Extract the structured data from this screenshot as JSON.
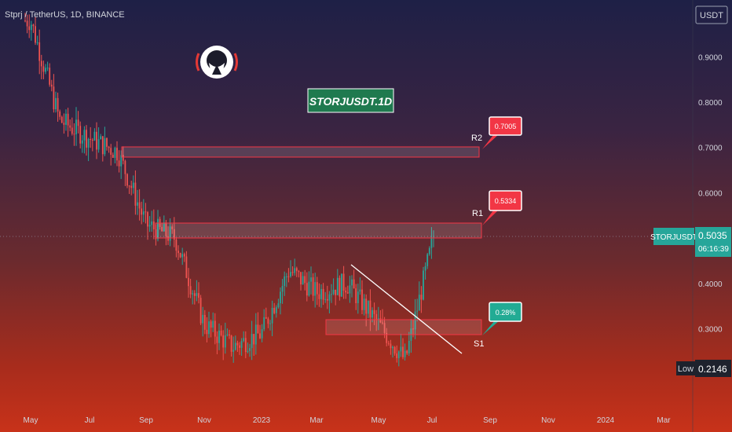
{
  "header": {
    "symbol_title": "Stprj / TetherUS, 1D, BINANCE"
  },
  "watermark": {
    "label": "STORJUSDT.1D"
  },
  "price_scale": {
    "currency": "USDT"
  },
  "current_price": {
    "ticker": "STORJUSDT",
    "value": "0.5035",
    "countdown": "06:16:39"
  },
  "low_marker": {
    "label": "Low",
    "value": "0.2146"
  },
  "annotations": {
    "r2": {
      "label": "R2",
      "callout": "0.7005"
    },
    "r1": {
      "label": "R1",
      "callout": "0.5334"
    },
    "s1": {
      "label": "S1",
      "callout": "0.28%"
    }
  },
  "colors": {
    "bull": "#26a69a",
    "bear": "#ef5350",
    "zone_border": "#f23645",
    "callout_red": "#f23645",
    "callout_green": "#22ab94",
    "trendline": "#ffffff"
  },
  "chart_data": {
    "type": "candlestick",
    "title": "Stprj / TetherUS, 1D, BINANCE",
    "y_axis": {
      "scale": "linear",
      "range": [
        0.2,
        1.0
      ],
      "ticks": [
        "0.3000",
        "0.4000",
        "0.5000",
        "0.6000",
        "0.7000",
        "0.8000",
        "0.9000"
      ]
    },
    "x_axis": {
      "ticks": [
        "May",
        "Jul",
        "Sep",
        "Nov",
        "2023",
        "Mar",
        "May",
        "Jul",
        "Sep",
        "Nov",
        "2024",
        "Mar"
      ]
    },
    "grid": false,
    "series": [
      {
        "type": "close_path",
        "points": [
          [
            "May",
            0.98
          ],
          [
            "Jun",
            0.76
          ],
          [
            "Jul",
            0.72
          ],
          [
            "Aug",
            0.69
          ],
          [
            "Sep",
            0.53
          ],
          [
            "Oct",
            0.5
          ],
          [
            "Nov",
            0.31
          ],
          [
            "Dec",
            0.26
          ],
          [
            "2023",
            0.29
          ],
          [
            "Feb",
            0.43
          ],
          [
            "Mar",
            0.38
          ],
          [
            "Apr",
            0.4
          ],
          [
            "May",
            0.31
          ],
          [
            "Jun",
            0.23
          ],
          [
            "Jul",
            0.51
          ]
        ]
      }
    ],
    "zones": [
      {
        "name": "R2",
        "low": 0.685,
        "high": 0.705
      },
      {
        "name": "R1",
        "low": 0.5,
        "high": 0.533
      },
      {
        "name": "S1",
        "low": 0.285,
        "high": 0.318
      }
    ],
    "trendline": {
      "from": [
        "Mar",
        0.445
      ],
      "to": [
        "Sep",
        0.245
      ]
    },
    "last_price": 0.5035,
    "low": 0.2146
  }
}
